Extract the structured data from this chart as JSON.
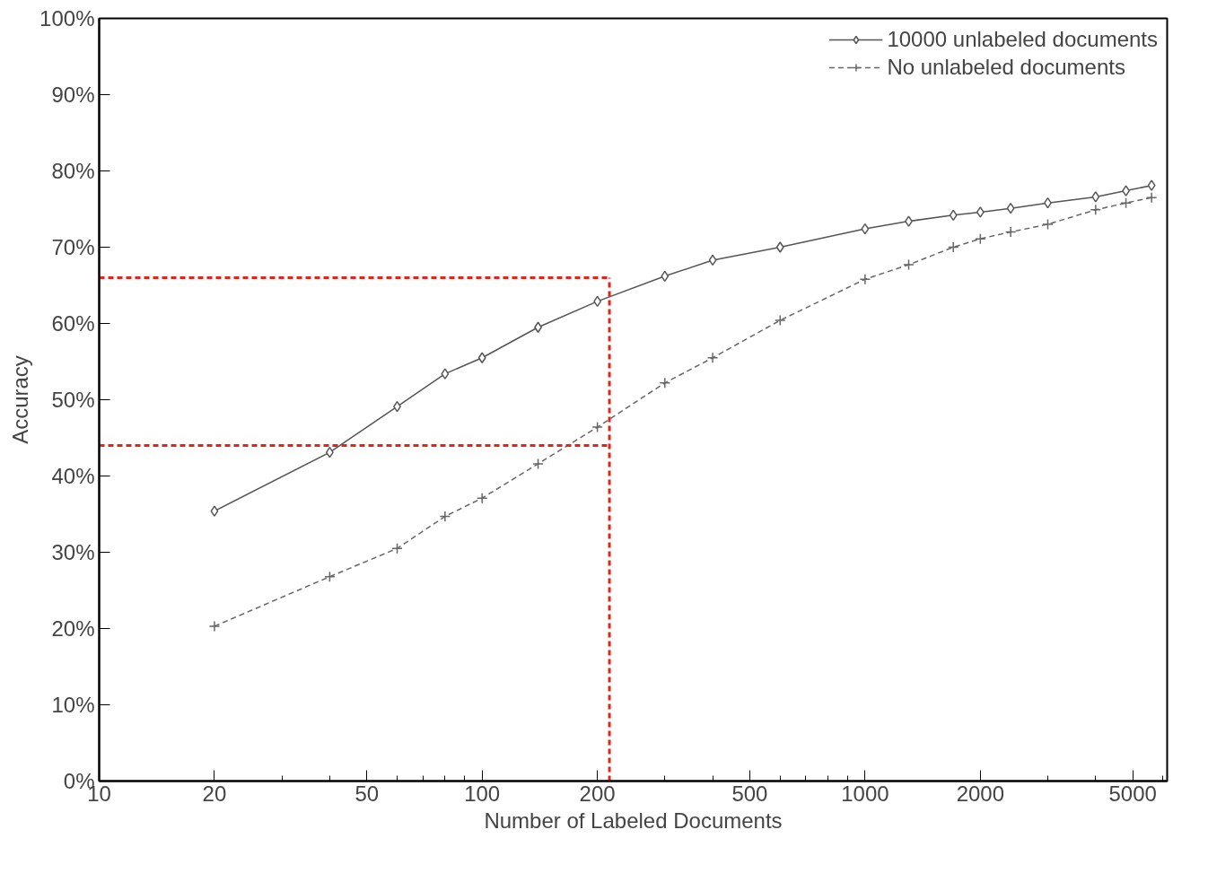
{
  "chart_data": {
    "type": "line",
    "xlabel": "Number of Labeled Documents",
    "ylabel": "Accuracy",
    "log": "x",
    "xlim": [
      10,
      6150
    ],
    "xticks": [
      10,
      20,
      50,
      100,
      200,
      500,
      1000,
      2000,
      5000
    ],
    "ylim": [
      0,
      100
    ],
    "yticks": [
      {
        "value": 0,
        "label": "0%"
      },
      {
        "value": 10,
        "label": "10%"
      },
      {
        "value": 20,
        "label": "20%"
      },
      {
        "value": 30,
        "label": "30%"
      },
      {
        "value": 40,
        "label": "40%"
      },
      {
        "value": 50,
        "label": "50%"
      },
      {
        "value": 60,
        "label": "60%"
      },
      {
        "value": 70,
        "label": "70%"
      },
      {
        "value": 80,
        "label": "80%"
      },
      {
        "value": 90,
        "label": "90%"
      },
      {
        "value": 100,
        "label": "100%"
      }
    ],
    "grid": false,
    "legend": "top right",
    "x": [
      20,
      40,
      60,
      80,
      100,
      140,
      200,
      300,
      400,
      600,
      1000,
      1300,
      1700,
      2000,
      2400,
      3000,
      4000,
      4800,
      5600
    ],
    "series": [
      {
        "name": "10000 unlabeled documents",
        "color": "#555555",
        "marker": "diamond",
        "line_style": "solid",
        "values": [
          35.4,
          43.1,
          49.1,
          53.4,
          55.5,
          59.5,
          62.9,
          66.2,
          68.3,
          70.0,
          72.4,
          73.4,
          74.2,
          74.6,
          75.1,
          75.8,
          76.6,
          77.4,
          78.1
        ]
      },
      {
        "name": "No unlabeled documents",
        "color": "#666666",
        "marker": "cross",
        "line_style": "dashed",
        "values": [
          20.3,
          26.8,
          30.5,
          34.7,
          37.1,
          41.6,
          46.4,
          52.2,
          55.5,
          60.4,
          65.8,
          67.7,
          70.0,
          71.1,
          72.0,
          73.0,
          74.9,
          75.8,
          76.5
        ]
      }
    ],
    "ref_lines": [
      {
        "axis": "y",
        "value": 66,
        "color": "#e8221b",
        "line_style": "dashed"
      },
      {
        "axis": "y",
        "value": 44,
        "color": "#e8221b",
        "line_style": "dashed"
      },
      {
        "axis": "x",
        "value": 215,
        "color": "#e8221b",
        "line_style": "dashed"
      }
    ]
  }
}
